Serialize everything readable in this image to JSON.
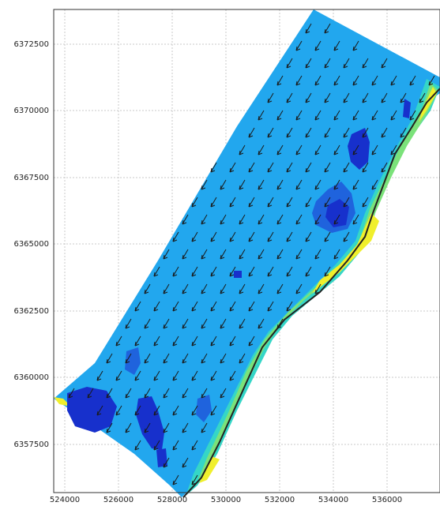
{
  "map": {
    "x_ticks": [
      "524000",
      "526000",
      "528000",
      "530000",
      "532000",
      "534000",
      "536000"
    ],
    "y_ticks": [
      "6372500",
      "6370000",
      "6367500",
      "6365000",
      "6362500",
      "6360000",
      "6357500"
    ],
    "colors": {
      "background_field": "#22a7ee",
      "deep_patch": "#1730cc",
      "mid_patch": "#1f63dd",
      "shoal_band_1": "#35d6c7",
      "shoal_band_2": "#7be27a",
      "shoal_band_3": "#f0ef2c",
      "coastline": "#222222",
      "vector_arrow": "#1a1a1a"
    },
    "field_type": "current-vector-field-over-depth-contours"
  }
}
